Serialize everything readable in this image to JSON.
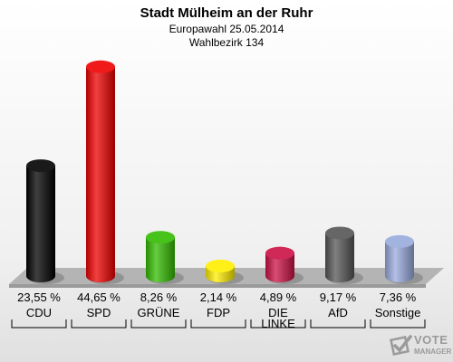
{
  "header": {
    "title": "Stadt Mülheim an der Ruhr",
    "subtitle": "Europawahl 25.05.2014",
    "district": "Wahlbezirk 134"
  },
  "chart_data": {
    "type": "bar",
    "categories": [
      "CDU",
      "SPD",
      "GRÜNE",
      "FDP",
      "DIE LINKE",
      "AfD",
      "Sonstige"
    ],
    "category_lines": [
      [
        "CDU"
      ],
      [
        "SPD"
      ],
      [
        "GRÜNE"
      ],
      [
        "FDP"
      ],
      [
        "DIE",
        "LINKE"
      ],
      [
        "AfD"
      ],
      [
        "Sonstige"
      ]
    ],
    "values": [
      23.55,
      44.65,
      8.26,
      2.14,
      4.89,
      9.17,
      7.36
    ],
    "value_labels": [
      "23,55 %",
      "44,65 %",
      "8,26 %",
      "2,14 %",
      "4,89 %",
      "9,17 %",
      "7,36 %"
    ],
    "colors": [
      "#000000",
      "#ee0000",
      "#33bb00",
      "#ffee00",
      "#cc1144",
      "#555555",
      "#99aadd"
    ],
    "ylim": [
      0,
      45
    ],
    "grid": false
  },
  "logo": {
    "line1": "VOTE",
    "line2": "MANAGER"
  }
}
